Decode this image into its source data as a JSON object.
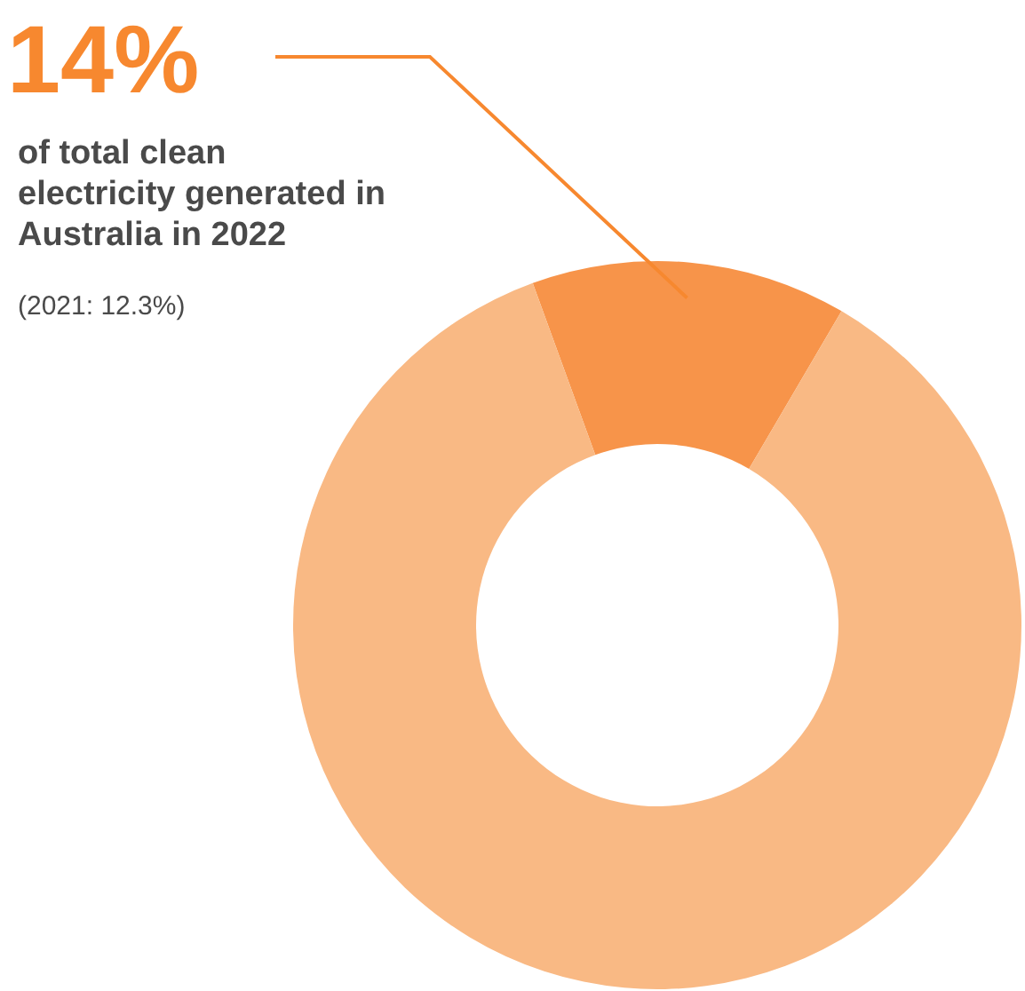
{
  "chart_data": {
    "type": "donut",
    "subtitle": "of total clean\nelectricity generated in\nAustralia in 2022",
    "annotations": [
      "(2021: 12.3%)"
    ],
    "categories": [
      null,
      null
    ],
    "values": [
      14,
      86
    ],
    "colors": [
      "#f7944a",
      "#f9b984"
    ],
    "value_labels": [
      "14%",
      null
    ]
  }
}
